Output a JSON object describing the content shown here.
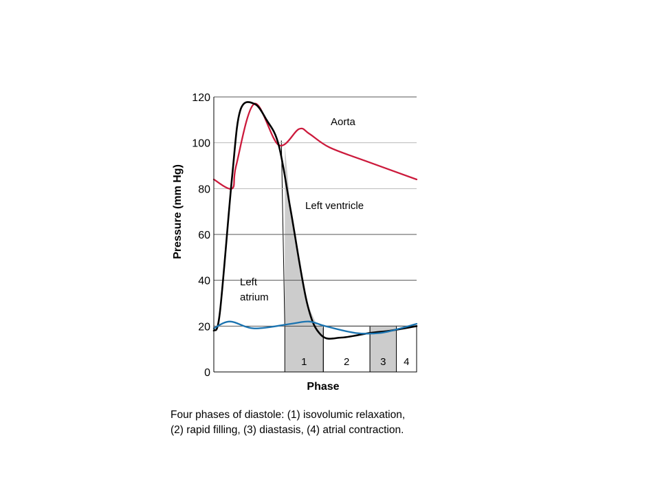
{
  "chart_data": {
    "type": "line",
    "title": "",
    "xlabel": "Phase",
    "ylabel": "Pressure (mm Hg)",
    "ylim": [
      0,
      120
    ],
    "yticks": [
      0,
      20,
      40,
      60,
      80,
      100,
      120
    ],
    "grid": true,
    "series": [
      {
        "name": "Aorta",
        "color": "#cc1a3c",
        "x": [
          0,
          0.09,
          0.11,
          0.2,
          0.32,
          0.42,
          0.47,
          0.57,
          0.75,
          1.0
        ],
        "y": [
          84,
          80,
          90,
          117,
          99,
          106,
          104,
          98,
          92,
          84
        ]
      },
      {
        "name": "Left ventricle",
        "color": "#000000",
        "x": [
          0,
          0.03,
          0.09,
          0.13,
          0.2,
          0.26,
          0.32,
          0.38,
          0.46,
          0.53,
          0.63,
          0.77,
          0.87,
          1.0
        ],
        "y": [
          18,
          26,
          85,
          114,
          117,
          110,
          99,
          70,
          30,
          16,
          15,
          17,
          18,
          20
        ]
      },
      {
        "name": "Left atrium",
        "color": "#1a73b0",
        "x": [
          0,
          0.08,
          0.2,
          0.38,
          0.47,
          0.55,
          0.7,
          0.82,
          0.92,
          1.0
        ],
        "y": [
          19,
          22,
          19,
          21,
          22,
          20,
          17,
          17,
          19,
          21
        ]
      }
    ],
    "phases": [
      {
        "label": "1",
        "start": 0.35,
        "end": 0.54,
        "shaded": true
      },
      {
        "label": "2",
        "start": 0.54,
        "end": 0.77,
        "shaded": false
      },
      {
        "label": "3",
        "start": 0.77,
        "end": 0.9,
        "shaded": true
      },
      {
        "label": "4",
        "start": 0.9,
        "end": 1.0,
        "shaded": false
      }
    ]
  },
  "labels": {
    "aorta": "Aorta",
    "left_ventricle": "Left ventricle",
    "left_atrium_line1": "Left",
    "left_atrium_line2": "atrium"
  },
  "caption": {
    "line1": "Four phases of diastole: (1) isovolumic relaxation,",
    "line2": "(2) rapid filling, (3) diastasis, (4) atrial contraction."
  }
}
